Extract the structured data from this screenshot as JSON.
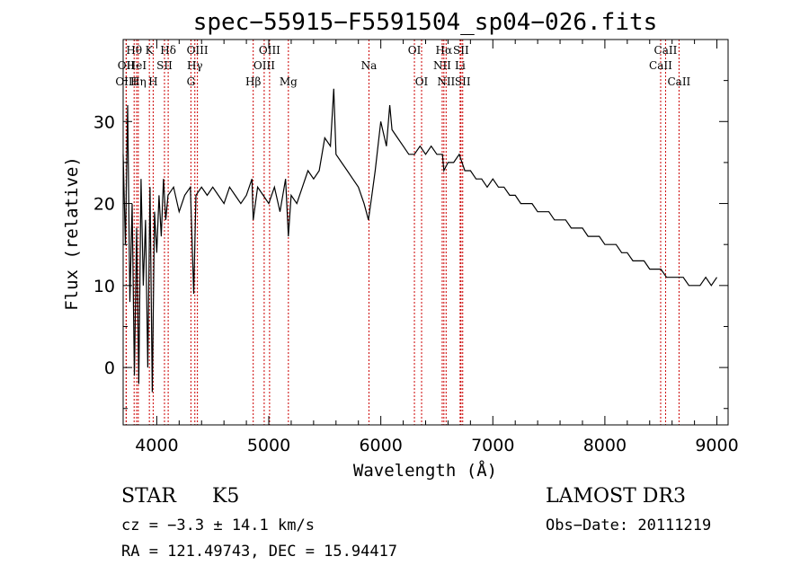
{
  "chart_data": {
    "type": "line",
    "title": "spec−55915−F5591504_sp04−026.fits",
    "xlabel": "Wavelength (Å)",
    "ylabel": "Flux (relative)",
    "xlim": [
      3700,
      9100
    ],
    "ylim": [
      -7,
      40
    ],
    "xticks": [
      4000,
      5000,
      6000,
      7000,
      8000,
      9000
    ],
    "yticks": [
      0,
      10,
      20,
      30
    ],
    "series": [
      {
        "name": "flux",
        "x": [
          3700,
          3720,
          3740,
          3760,
          3780,
          3800,
          3820,
          3840,
          3860,
          3880,
          3900,
          3920,
          3940,
          3960,
          3980,
          4000,
          4020,
          4040,
          4060,
          4080,
          4100,
          4150,
          4200,
          4250,
          4300,
          4330,
          4350,
          4400,
          4450,
          4500,
          4550,
          4600,
          4650,
          4700,
          4750,
          4800,
          4850,
          4861,
          4900,
          4950,
          5000,
          5050,
          5100,
          5150,
          5175,
          5200,
          5250,
          5300,
          5350,
          5400,
          5450,
          5500,
          5550,
          5580,
          5600,
          5650,
          5700,
          5750,
          5800,
          5850,
          5890,
          5920,
          5950,
          6000,
          6050,
          6080,
          6100,
          6150,
          6200,
          6250,
          6300,
          6350,
          6400,
          6450,
          6500,
          6550,
          6563,
          6600,
          6650,
          6700,
          6750,
          6800,
          6850,
          6900,
          6950,
          7000,
          7050,
          7100,
          7150,
          7200,
          7250,
          7300,
          7350,
          7400,
          7450,
          7500,
          7550,
          7600,
          7650,
          7700,
          7750,
          7800,
          7850,
          7900,
          7950,
          8000,
          8050,
          8100,
          8150,
          8200,
          8250,
          8300,
          8350,
          8400,
          8450,
          8500,
          8550,
          8600,
          8650,
          8700,
          8750,
          8800,
          8850,
          8900,
          8950,
          9000
        ],
        "values": [
          26,
          15,
          32,
          8,
          20,
          -1,
          17,
          -2,
          23,
          10,
          18,
          0,
          22,
          -3,
          19,
          14,
          21,
          16,
          23,
          18,
          21,
          22,
          19,
          21,
          22,
          9,
          21,
          22,
          21,
          22,
          21,
          20,
          22,
          21,
          20,
          21,
          23,
          18,
          22,
          21,
          20,
          22,
          19,
          23,
          16,
          21,
          20,
          22,
          24,
          23,
          24,
          28,
          27,
          34,
          26,
          25,
          24,
          23,
          22,
          20,
          18,
          21,
          24,
          30,
          27,
          32,
          29,
          28,
          27,
          26,
          26,
          27,
          26,
          27,
          26,
          26,
          24,
          25,
          25,
          26,
          24,
          24,
          23,
          23,
          22,
          23,
          22,
          22,
          21,
          21,
          20,
          20,
          20,
          19,
          19,
          19,
          18,
          18,
          18,
          17,
          17,
          17,
          16,
          16,
          16,
          15,
          15,
          15,
          14,
          14,
          13,
          13,
          13,
          12,
          12,
          12,
          11,
          11,
          11,
          11,
          10,
          10,
          10,
          11,
          10,
          11
        ]
      }
    ],
    "lines": [
      {
        "name": "Hθ",
        "wavelength": 3798,
        "row": 0
      },
      {
        "name": "OII",
        "wavelength": 3727,
        "row": 1
      },
      {
        "name": "OIII",
        "wavelength": 3727,
        "row": 2
      },
      {
        "name": "Hη",
        "wavelength": 3835,
        "row": 2
      },
      {
        "name": "HeI",
        "wavelength": 3820,
        "row": 1
      },
      {
        "name": "K",
        "wavelength": 3934,
        "row": 0
      },
      {
        "name": "SII",
        "wavelength": 4069,
        "row": 1
      },
      {
        "name": "H",
        "wavelength": 3968,
        "row": 2
      },
      {
        "name": "Hδ",
        "wavelength": 4102,
        "row": 0
      },
      {
        "name": "OIII",
        "wavelength": 4363,
        "row": 0
      },
      {
        "name": "Hγ",
        "wavelength": 4340,
        "row": 1
      },
      {
        "name": "G",
        "wavelength": 4305,
        "row": 2
      },
      {
        "name": "Hβ",
        "wavelength": 4861,
        "row": 2
      },
      {
        "name": "OIII",
        "wavelength": 4959,
        "row": 1
      },
      {
        "name": "OIII",
        "wavelength": 5007,
        "row": 0
      },
      {
        "name": "Mg",
        "wavelength": 5175,
        "row": 2
      },
      {
        "name": "Na",
        "wavelength": 5894,
        "row": 1
      },
      {
        "name": "OI",
        "wavelength": 6300,
        "row": 0
      },
      {
        "name": "OI",
        "wavelength": 6364,
        "row": 2
      },
      {
        "name": "Hα",
        "wavelength": 6563,
        "row": 0
      },
      {
        "name": "NII",
        "wavelength": 6548,
        "row": 1
      },
      {
        "name": "NII",
        "wavelength": 6583,
        "row": 2
      },
      {
        "name": "SII",
        "wavelength": 6716,
        "row": 0
      },
      {
        "name": "Li",
        "wavelength": 6708,
        "row": 1
      },
      {
        "name": "SII",
        "wavelength": 6731,
        "row": 2
      },
      {
        "name": "CaII",
        "wavelength": 8498,
        "row": 1
      },
      {
        "name": "CaII",
        "wavelength": 8542,
        "row": 0
      },
      {
        "name": "CaII",
        "wavelength": 8662,
        "row": 2
      }
    ]
  },
  "info": {
    "class": "STAR",
    "subclass": "K5",
    "survey": "LAMOST DR3",
    "cz": "cz = −3.3 ± 14.1 km/s",
    "obs_date": "Obs−Date: 20111219",
    "coords": "RA = 121.49743, DEC =  15.94417"
  },
  "colors": {
    "line_marker": "#cc0000",
    "spectrum": "#000000",
    "axis": "#000000"
  }
}
